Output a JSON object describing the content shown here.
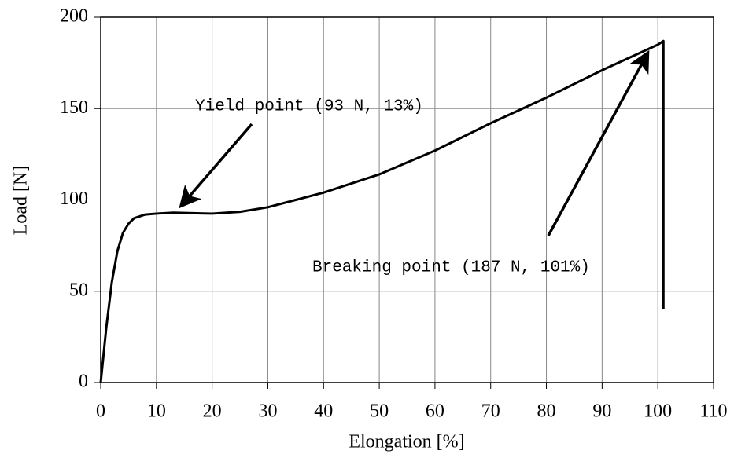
{
  "chart_data": {
    "type": "line",
    "x_label": "Elongation [%]",
    "y_label": "Load [N]",
    "xlim": [
      0,
      110
    ],
    "ylim": [
      0,
      200
    ],
    "xticks": [
      0,
      10,
      20,
      30,
      40,
      50,
      60,
      70,
      80,
      90,
      100,
      110
    ],
    "yticks": [
      0,
      50,
      100,
      150,
      200
    ],
    "grid": true,
    "series": [
      {
        "color": "#000000",
        "x": [
          0,
          1,
          2,
          3,
          4,
          5,
          6,
          8,
          10,
          13,
          20,
          25,
          30,
          35,
          40,
          50,
          60,
          70,
          80,
          90,
          100,
          101,
          101
        ],
        "values": [
          0,
          30,
          55,
          72,
          82,
          87,
          90,
          92,
          92.5,
          93,
          92.5,
          93.5,
          96,
          100,
          104,
          114,
          127,
          142,
          156,
          171,
          185,
          187,
          40
        ]
      }
    ],
    "annotations": [
      {
        "text": "Yield point (93 N, 13%)"
      },
      {
        "text": "Breaking point (187 N, 101%)"
      }
    ]
  }
}
